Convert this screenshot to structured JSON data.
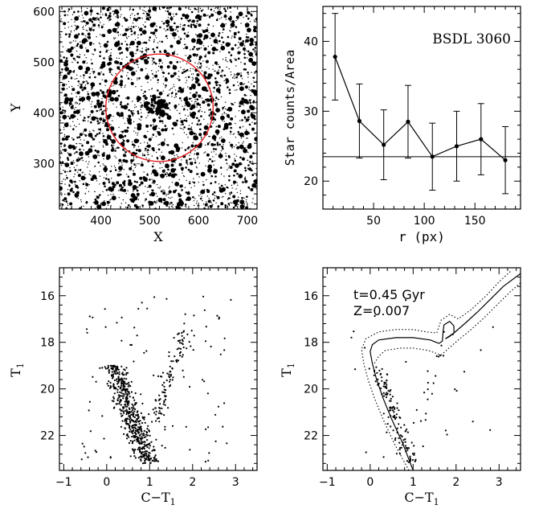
{
  "chart_data": [
    {
      "type": "scatter",
      "panel": "top-left",
      "xlabel": "X",
      "ylabel": "Y",
      "xlim": [
        315,
        720
      ],
      "ylim": [
        210,
        610
      ],
      "xticks": [
        400,
        500,
        600,
        700
      ],
      "yticks": [
        300,
        400,
        500,
        600
      ],
      "circle": {
        "cx": 520,
        "cy": 410,
        "r": 110,
        "color": "#e41a1c"
      },
      "field_star_count": 2600
    },
    {
      "type": "line",
      "panel": "top-right",
      "annotation": "BSDL 3060",
      "xlabel": "r (px)",
      "ylabel": "Star counts/Area",
      "xlim": [
        0,
        195
      ],
      "ylim": [
        16,
        45
      ],
      "xticks": [
        50,
        100,
        150
      ],
      "yticks": [
        20,
        30,
        40
      ],
      "background_level": 23.5,
      "series": [
        {
          "x": [
            12,
            36,
            60,
            84,
            108,
            132,
            156,
            180
          ],
          "y": [
            37.8,
            28.6,
            25.2,
            28.5,
            23.5,
            25.0,
            26.0,
            23.0
          ],
          "err": [
            6.2,
            5.3,
            5.0,
            5.2,
            4.8,
            5.0,
            5.1,
            4.8
          ]
        }
      ]
    },
    {
      "type": "scatter",
      "panel": "bottom-left",
      "xlabel": "C−T",
      "xlabel_sub": "1",
      "ylabel": "T",
      "ylabel_sub": "1",
      "xlim": [
        -1.1,
        3.5
      ],
      "ylim": [
        23.5,
        14.8
      ],
      "xticks": [
        -1,
        0,
        1,
        2,
        3
      ],
      "yticks": [
        16,
        18,
        20,
        22
      ],
      "star_count": 720
    },
    {
      "type": "scatter",
      "panel": "bottom-right",
      "annotation_lines": [
        "t=0.45 Gyr",
        "Z=0.007"
      ],
      "xlabel": "C−T",
      "xlabel_sub": "1",
      "ylabel": "T",
      "ylabel_sub": "1",
      "xlim": [
        -1.1,
        3.5
      ],
      "ylim": [
        23.5,
        14.8
      ],
      "xticks": [
        -1,
        0,
        1,
        2,
        3
      ],
      "yticks": [
        16,
        18,
        20,
        22
      ],
      "star_count": 170,
      "isochrone": {
        "main_sequence": [
          [
            1.0,
            23.5
          ],
          [
            0.75,
            22.3
          ],
          [
            0.5,
            21.3
          ],
          [
            0.3,
            20.4
          ],
          [
            0.15,
            19.6
          ],
          [
            0.05,
            18.9
          ],
          [
            0.0,
            18.4
          ],
          [
            0.05,
            18.1
          ],
          [
            0.2,
            17.9
          ],
          [
            0.6,
            17.8
          ],
          [
            1.0,
            17.8
          ],
          [
            1.4,
            17.9
          ],
          [
            1.6,
            18.05
          ]
        ],
        "giant_branch": [
          [
            1.6,
            18.05
          ],
          [
            1.68,
            17.95
          ],
          [
            1.7,
            17.5
          ],
          [
            1.72,
            17.25
          ],
          [
            1.85,
            17.1
          ],
          [
            1.95,
            17.3
          ],
          [
            1.95,
            17.6
          ],
          [
            1.85,
            17.75
          ],
          [
            1.75,
            17.85
          ],
          [
            1.95,
            17.6
          ],
          [
            2.2,
            17.2
          ],
          [
            2.5,
            16.7
          ],
          [
            2.8,
            16.15
          ],
          [
            3.1,
            15.6
          ],
          [
            3.5,
            15.05
          ]
        ],
        "envelope_upper": [
          [
            0.9,
            23.5
          ],
          [
            0.55,
            22.3
          ],
          [
            0.3,
            21.3
          ],
          [
            0.1,
            20.4
          ],
          [
            -0.05,
            19.6
          ],
          [
            -0.15,
            18.9
          ],
          [
            -0.2,
            18.3
          ],
          [
            -0.1,
            17.85
          ],
          [
            0.2,
            17.55
          ],
          [
            0.6,
            17.45
          ],
          [
            1.0,
            17.45
          ],
          [
            1.3,
            17.55
          ],
          [
            1.55,
            17.6
          ],
          [
            1.65,
            17.05
          ],
          [
            1.85,
            16.8
          ],
          [
            2.05,
            17.0
          ],
          [
            2.35,
            16.6
          ],
          [
            2.7,
            16.0
          ],
          [
            3.0,
            15.4
          ],
          [
            3.3,
            14.9
          ]
        ],
        "envelope_lower": [
          [
            0.1,
            18.9
          ],
          [
            0.2,
            18.6
          ],
          [
            0.35,
            18.35
          ],
          [
            0.7,
            18.25
          ],
          [
            1.0,
            18.25
          ],
          [
            1.35,
            18.35
          ],
          [
            1.65,
            18.55
          ],
          [
            1.8,
            18.3
          ],
          [
            2.05,
            17.9
          ],
          [
            2.35,
            17.45
          ],
          [
            2.65,
            16.95
          ],
          [
            2.95,
            16.4
          ],
          [
            3.25,
            15.85
          ],
          [
            3.5,
            15.45
          ]
        ]
      }
    }
  ]
}
